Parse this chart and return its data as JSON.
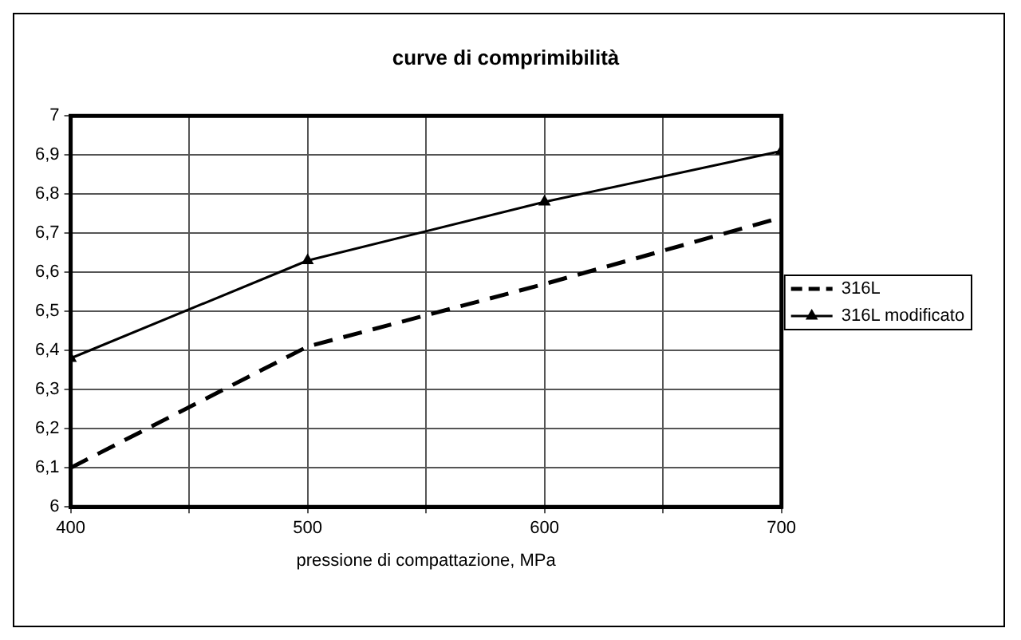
{
  "chart_data": {
    "type": "line",
    "title": "curve di comprimibilità",
    "xlabel": "pressione di compattazione, MPa",
    "x": [
      400,
      500,
      600,
      700
    ],
    "series": [
      {
        "name": "316L",
        "color": "#000000",
        "values": [
          6.1,
          6.41,
          6.57,
          6.74
        ],
        "line_style": "dashed",
        "marker": "none"
      },
      {
        "name": "316L modificato",
        "color": "#000000",
        "values": [
          6.38,
          6.63,
          6.78,
          6.91
        ],
        "line_style": "solid",
        "marker": "triangle"
      }
    ],
    "xlim": [
      400,
      700
    ],
    "xticks": [
      400,
      {
        "value": 450,
        "label": null
      },
      500,
      {
        "value": 550,
        "label": null
      },
      600,
      {
        "value": 650,
        "label": null
      },
      700
    ],
    "ylim": [
      6,
      7
    ],
    "yticks": [
      6,
      {
        "value": 6.1,
        "label": "6,1"
      },
      {
        "value": 6.2,
        "label": "6,2"
      },
      {
        "value": 6.3,
        "label": "6,3"
      },
      {
        "value": 6.4,
        "label": "6,4"
      },
      {
        "value": 6.5,
        "label": "6,5"
      },
      {
        "value": 6.6,
        "label": "6,6"
      },
      {
        "value": 6.7,
        "label": "6,7"
      },
      {
        "value": 6.8,
        "label": "6,8"
      },
      {
        "value": 6.9,
        "label": "6,9"
      },
      7
    ],
    "grid": true,
    "legend": "right"
  }
}
